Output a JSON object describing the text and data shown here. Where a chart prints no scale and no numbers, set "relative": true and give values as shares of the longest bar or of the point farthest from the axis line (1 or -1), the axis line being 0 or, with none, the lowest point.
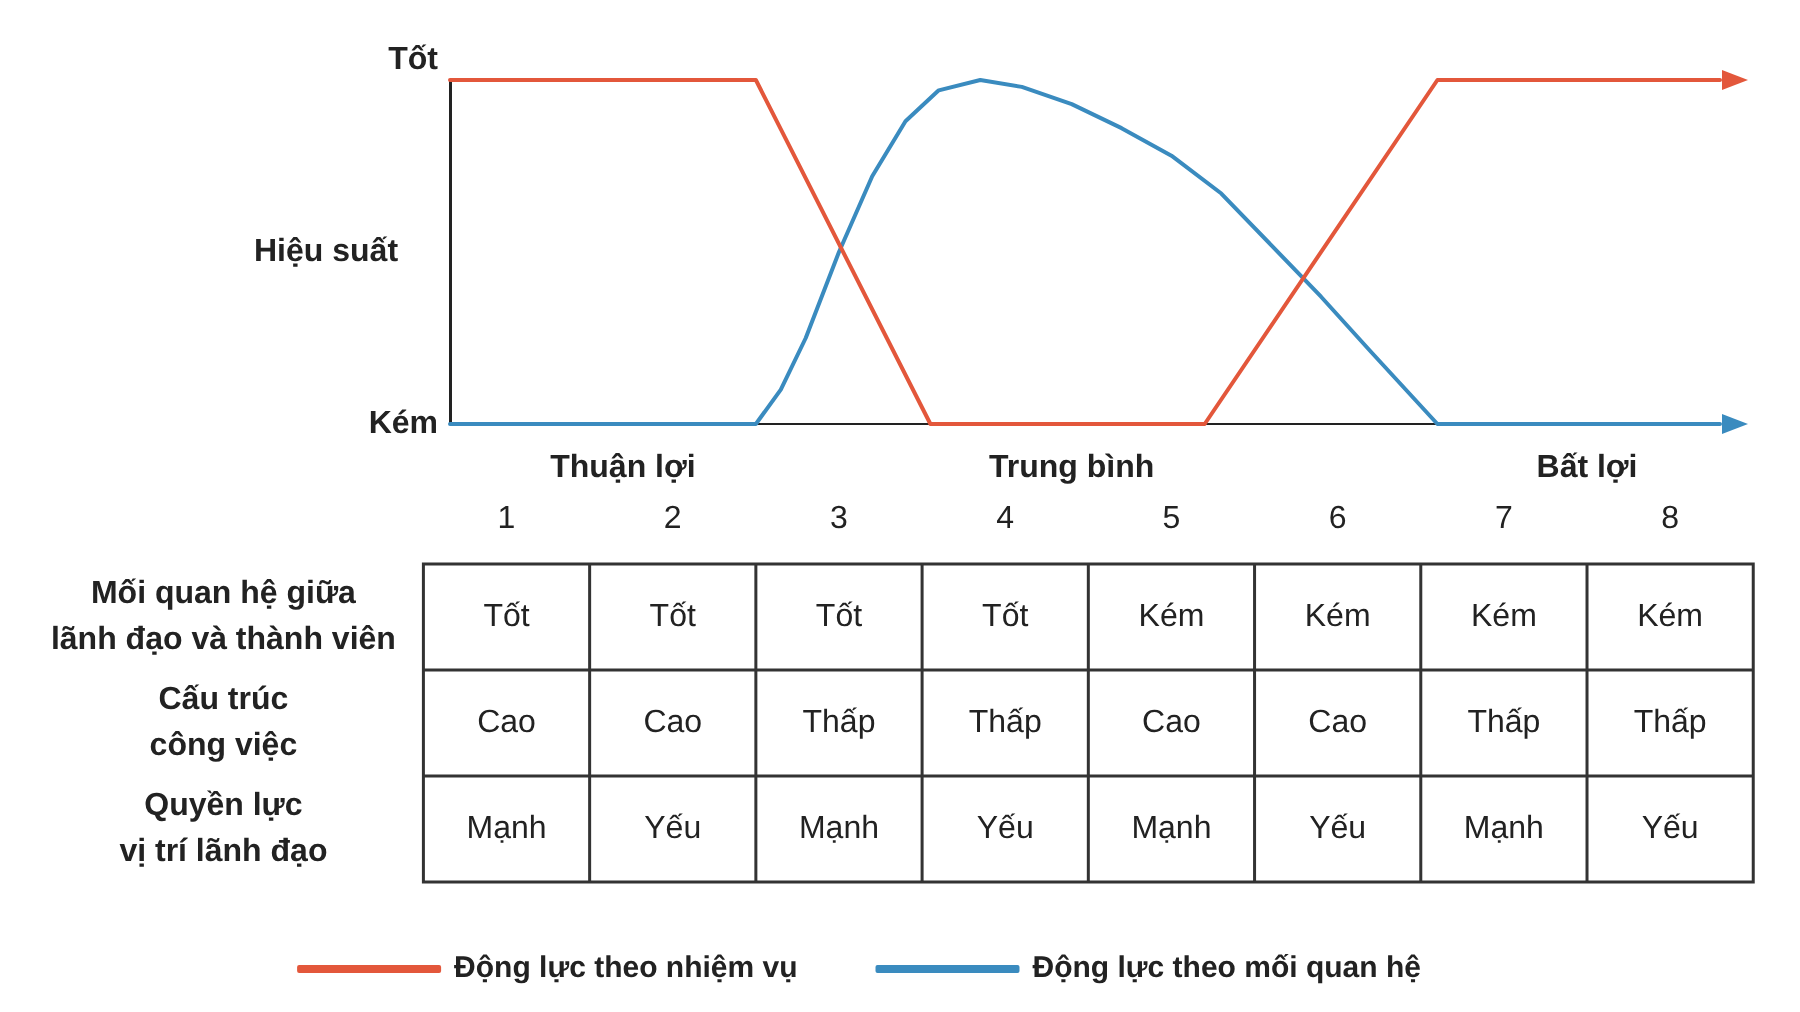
{
  "chart_data": {
    "type": "line",
    "ylabel": "Hiệu suất",
    "relative": true,
    "xlim": [
      0.66,
      8.3
    ],
    "xticks": [
      1,
      2,
      3,
      4,
      5,
      6,
      7,
      8
    ],
    "grid": false,
    "legend": "bottom",
    "marker": "none",
    "line_style": "solid",
    "series": [
      {
        "name": "Động lực theo nhiệm vụ",
        "color": "#e3573b",
        "x": [
          0.66,
          2.5,
          3.55,
          5.2,
          6.6,
          8.3
        ],
        "values": [
          1,
          1,
          0,
          0,
          1,
          1
        ]
      },
      {
        "name": "Động lực theo mối quan hệ",
        "color": "#3a8bbf",
        "x": [
          0.66,
          2.5,
          2.65,
          2.8,
          3.0,
          3.2,
          3.4,
          3.6,
          3.85,
          4.1,
          4.4,
          4.7,
          5.0,
          5.3,
          5.6,
          5.9,
          6.2,
          6.6,
          8.3
        ],
        "values": [
          0,
          0,
          0.1,
          0.25,
          0.5,
          0.72,
          0.88,
          0.97,
          1.0,
          0.98,
          0.93,
          0.86,
          0.78,
          0.67,
          0.52,
          0.37,
          0.21,
          0,
          0
        ]
      }
    ],
    "annotations": [
      "Tốt",
      "Kém",
      "Thuận lợi",
      "Trung bình",
      "Bất lợi",
      "Mối quan hệ giữa\nlãnh đạo và thành viên",
      "Tốt",
      "Tốt",
      "Tốt",
      "Tốt",
      "Kém",
      "Kém",
      "Kém",
      "Kém",
      "Cấu trúc\ncông việc",
      "Cao",
      "Cao",
      "Thấp",
      "Thấp",
      "Cao",
      "Cao",
      "Thấp",
      "Thấp",
      "Quyền lực\nvị trí lãnh đạo",
      "Mạnh",
      "Yếu",
      "Mạnh",
      "Yếu",
      "Mạnh",
      "Yếu",
      "Mạnh",
      "Yếu"
    ]
  }
}
